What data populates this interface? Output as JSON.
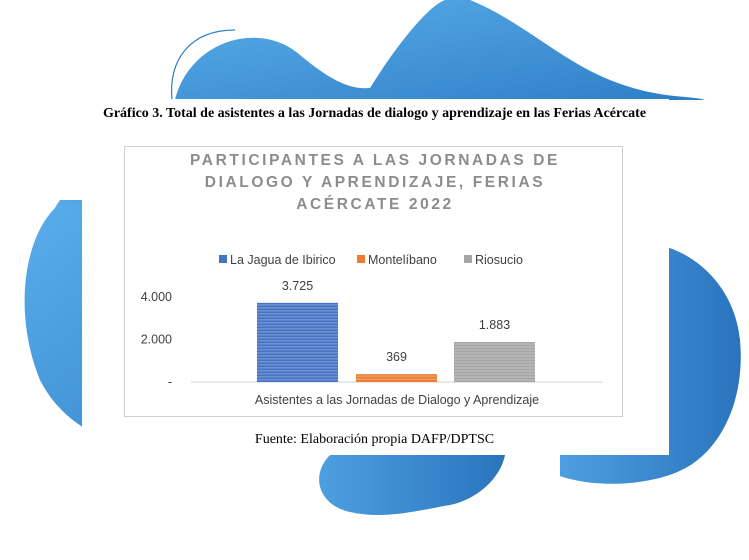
{
  "figure": {
    "caption": "Gráfico 3. Total de asistentes a las Jornadas de dialogo y aprendizaje en las Ferias Acércate",
    "source": "Fuente: Elaboración propia DAFP/DPTSC"
  },
  "chart_data": {
    "type": "bar",
    "title_lines": [
      "PARTICIPANTES A LAS JORNADAS DE",
      "DIALOGO Y APRENDIZAJE, FERIAS",
      "ACÉRCATE 2022"
    ],
    "categories": [
      "Asistentes a las Jornadas de Dialogo y Aprendizaje"
    ],
    "series": [
      {
        "name": "La Jagua de Ibirico",
        "values": [
          3725
        ],
        "label": "3.725",
        "color": "#4472c4"
      },
      {
        "name": "Montelíbano",
        "values": [
          369
        ],
        "label": "369",
        "color": "#ed7d31"
      },
      {
        "name": "Riosucio",
        "values": [
          1883
        ],
        "label": "1.883",
        "color": "#a5a5a5"
      }
    ],
    "y_ticks": [
      {
        "value": 0,
        "label": "-"
      },
      {
        "value": 2000,
        "label": "2.000"
      },
      {
        "value": 4000,
        "label": "4.000"
      }
    ],
    "ylim": [
      0,
      4000
    ],
    "legend_position": "top",
    "grid": false
  },
  "colors": {
    "blob_light": "#5aaeea",
    "blob_dark": "#2e7ec6"
  }
}
